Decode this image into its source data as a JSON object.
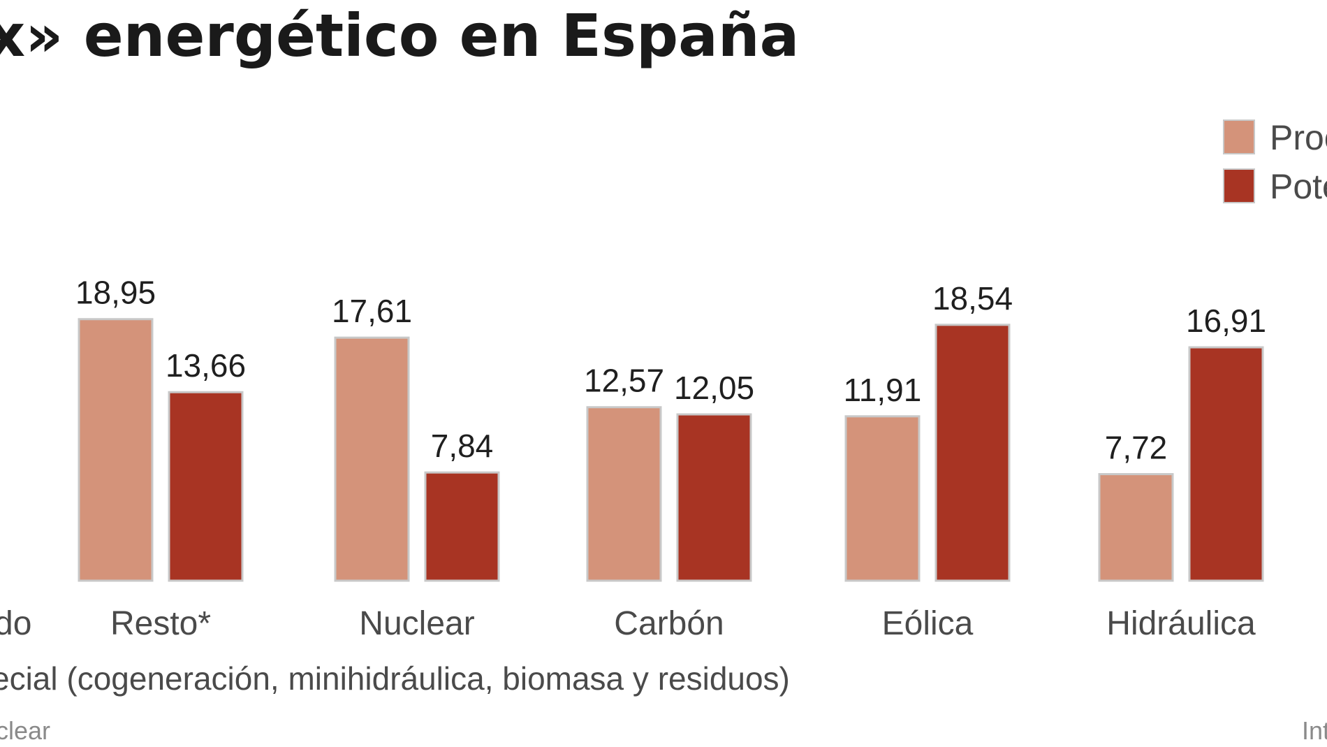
{
  "title": "x» energético en España",
  "footnote": "ecial (cogeneración, minihidráulica, biomasa y residuos)",
  "source_left": "clear",
  "source_right": "Int",
  "colors": {
    "series1": "#d4937a",
    "series2": "#a83423",
    "bar_edge": "#c8c8c8"
  },
  "chart_data": {
    "type": "bar",
    "title": "x» energético en España",
    "categories": [
      "Resto*",
      "Nuclear",
      "Carbón",
      "Eólica",
      "Hidráulica"
    ],
    "partial_category_label": "do",
    "series": [
      {
        "name": "Proc",
        "values": [
          18.95,
          17.61,
          12.57,
          11.91,
          7.72
        ]
      },
      {
        "name": "Pote",
        "values": [
          13.66,
          7.84,
          12.05,
          18.54,
          16.91
        ]
      }
    ],
    "value_labels": [
      [
        "18,95",
        "17,61",
        "12,57",
        "11,91",
        "7,72"
      ],
      [
        "13,66",
        "7,84",
        "12,05",
        "18,54",
        "16,91"
      ]
    ],
    "ylim": [
      0,
      20
    ],
    "grid": false,
    "legend": "top-right"
  }
}
